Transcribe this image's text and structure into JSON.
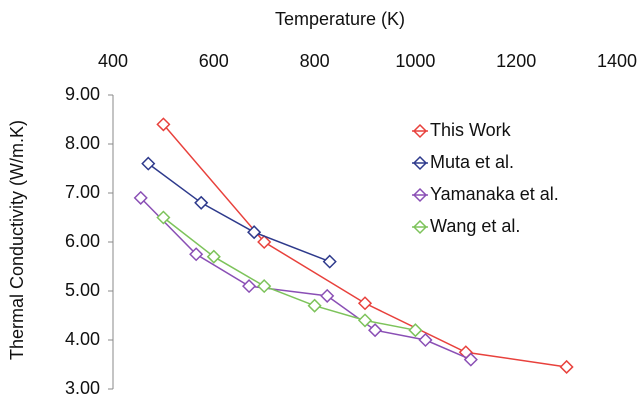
{
  "chart_data": {
    "type": "line",
    "x_label": "Temperature (K)",
    "y_label": "Thermal Conductivity (W/m.K)",
    "xlim": [
      400,
      1400
    ],
    "xticks": [
      400,
      600,
      800,
      1000,
      1200,
      1400
    ],
    "ylim": [
      3,
      9
    ],
    "yticks": [
      {
        "value": 3,
        "label": "3.00"
      },
      {
        "value": 4,
        "label": "4.00"
      },
      {
        "value": 5,
        "label": "5.00"
      },
      {
        "value": 6,
        "label": "6.00"
      },
      {
        "value": 7,
        "label": "7.00"
      },
      {
        "value": 8,
        "label": "8.00"
      },
      {
        "value": 9,
        "label": "9.00"
      }
    ],
    "series": [
      {
        "name": "This Work",
        "color": "#e8413c",
        "x": [
          500,
          700,
          900,
          1100,
          1300
        ],
        "values": [
          8.4,
          6.0,
          4.75,
          3.75,
          3.45
        ]
      },
      {
        "name": "Muta et al.",
        "color": "#2e3a8c",
        "x": [
          470,
          575,
          680,
          830
        ],
        "values": [
          7.6,
          6.8,
          6.2,
          5.6
        ]
      },
      {
        "name": "Yamanaka et al.",
        "color": "#8a4fb5",
        "x": [
          455,
          565,
          670,
          825,
          920,
          1020,
          1110
        ],
        "values": [
          6.9,
          5.75,
          5.1,
          4.9,
          4.2,
          4.0,
          3.6
        ]
      },
      {
        "name": "Wang et al.",
        "color": "#7dc35b",
        "x": [
          500,
          600,
          700,
          800,
          900,
          1000
        ],
        "values": [
          6.5,
          5.7,
          5.1,
          4.7,
          4.4,
          4.2
        ]
      }
    ]
  }
}
